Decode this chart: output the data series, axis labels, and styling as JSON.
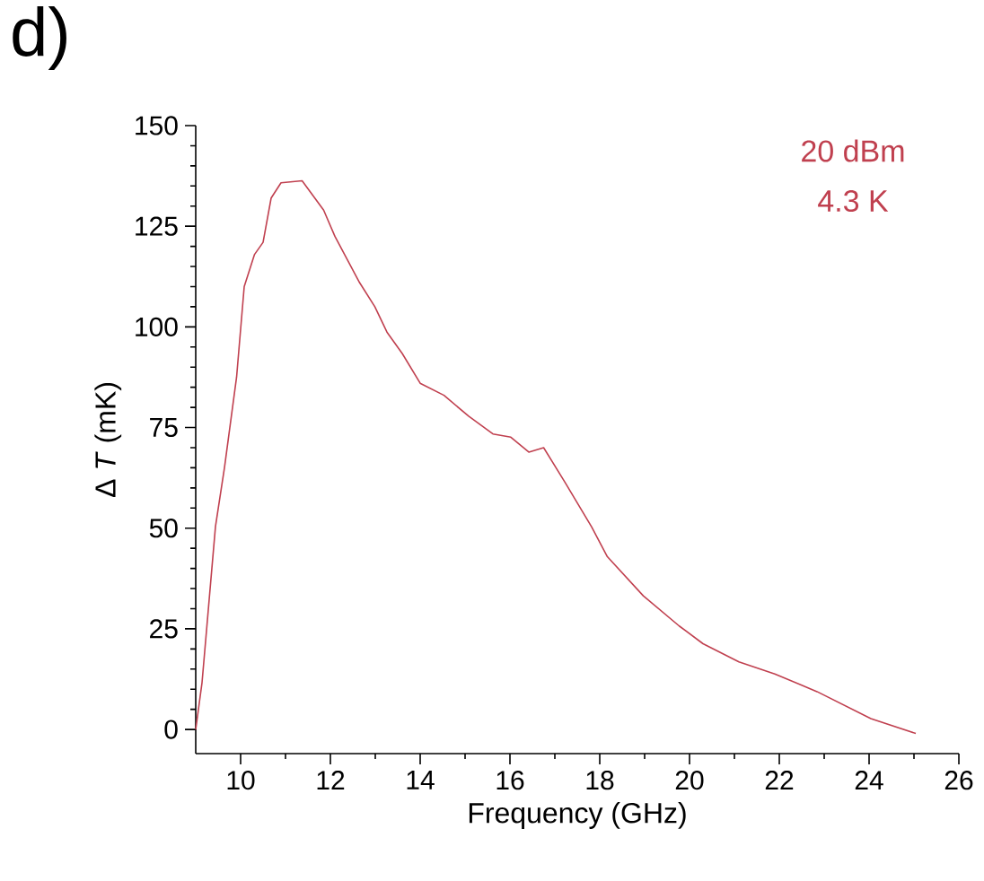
{
  "chart_data": {
    "type": "line",
    "xlabel": "Frequency (GHz)",
    "ylabel": "Δ *T* (mK)",
    "annotations": [
      "d)",
      "20 dBm",
      "4.3 K"
    ],
    "xlim": [
      9,
      26
    ],
    "ylim": [
      -6,
      150
    ],
    "xticks": [
      10,
      12,
      14,
      16,
      18,
      20,
      22,
      24,
      26
    ],
    "yticks": [
      0,
      25,
      50,
      75,
      100,
      125,
      150
    ],
    "grid": false,
    "marker": "none",
    "line_style": "solid",
    "series": [
      {
        "color": "#c0404f",
        "x": [
          9.0,
          9.14,
          9.44,
          9.64,
          9.91,
          10.08,
          10.31,
          10.5,
          10.68,
          10.9,
          11.37,
          11.85,
          12.1,
          12.65,
          12.99,
          13.26,
          13.6,
          14.0,
          14.53,
          15.08,
          15.62,
          16.02,
          16.42,
          16.75,
          17.22,
          17.82,
          18.17,
          18.97,
          19.77,
          20.3,
          21.1,
          21.9,
          22.84,
          24.04,
          25.04
        ],
        "values": [
          0,
          11.6,
          50.4,
          65,
          87.5,
          110,
          118,
          121,
          132,
          135.8,
          136.3,
          129,
          122.5,
          111,
          105,
          98.7,
          93.4,
          86,
          83,
          77.8,
          73.4,
          72.6,
          68.9,
          70,
          61.5,
          50.3,
          42.9,
          33.2,
          25.7,
          21.3,
          16.8,
          13.8,
          9.4,
          2.7,
          -1.0
        ]
      }
    ]
  }
}
